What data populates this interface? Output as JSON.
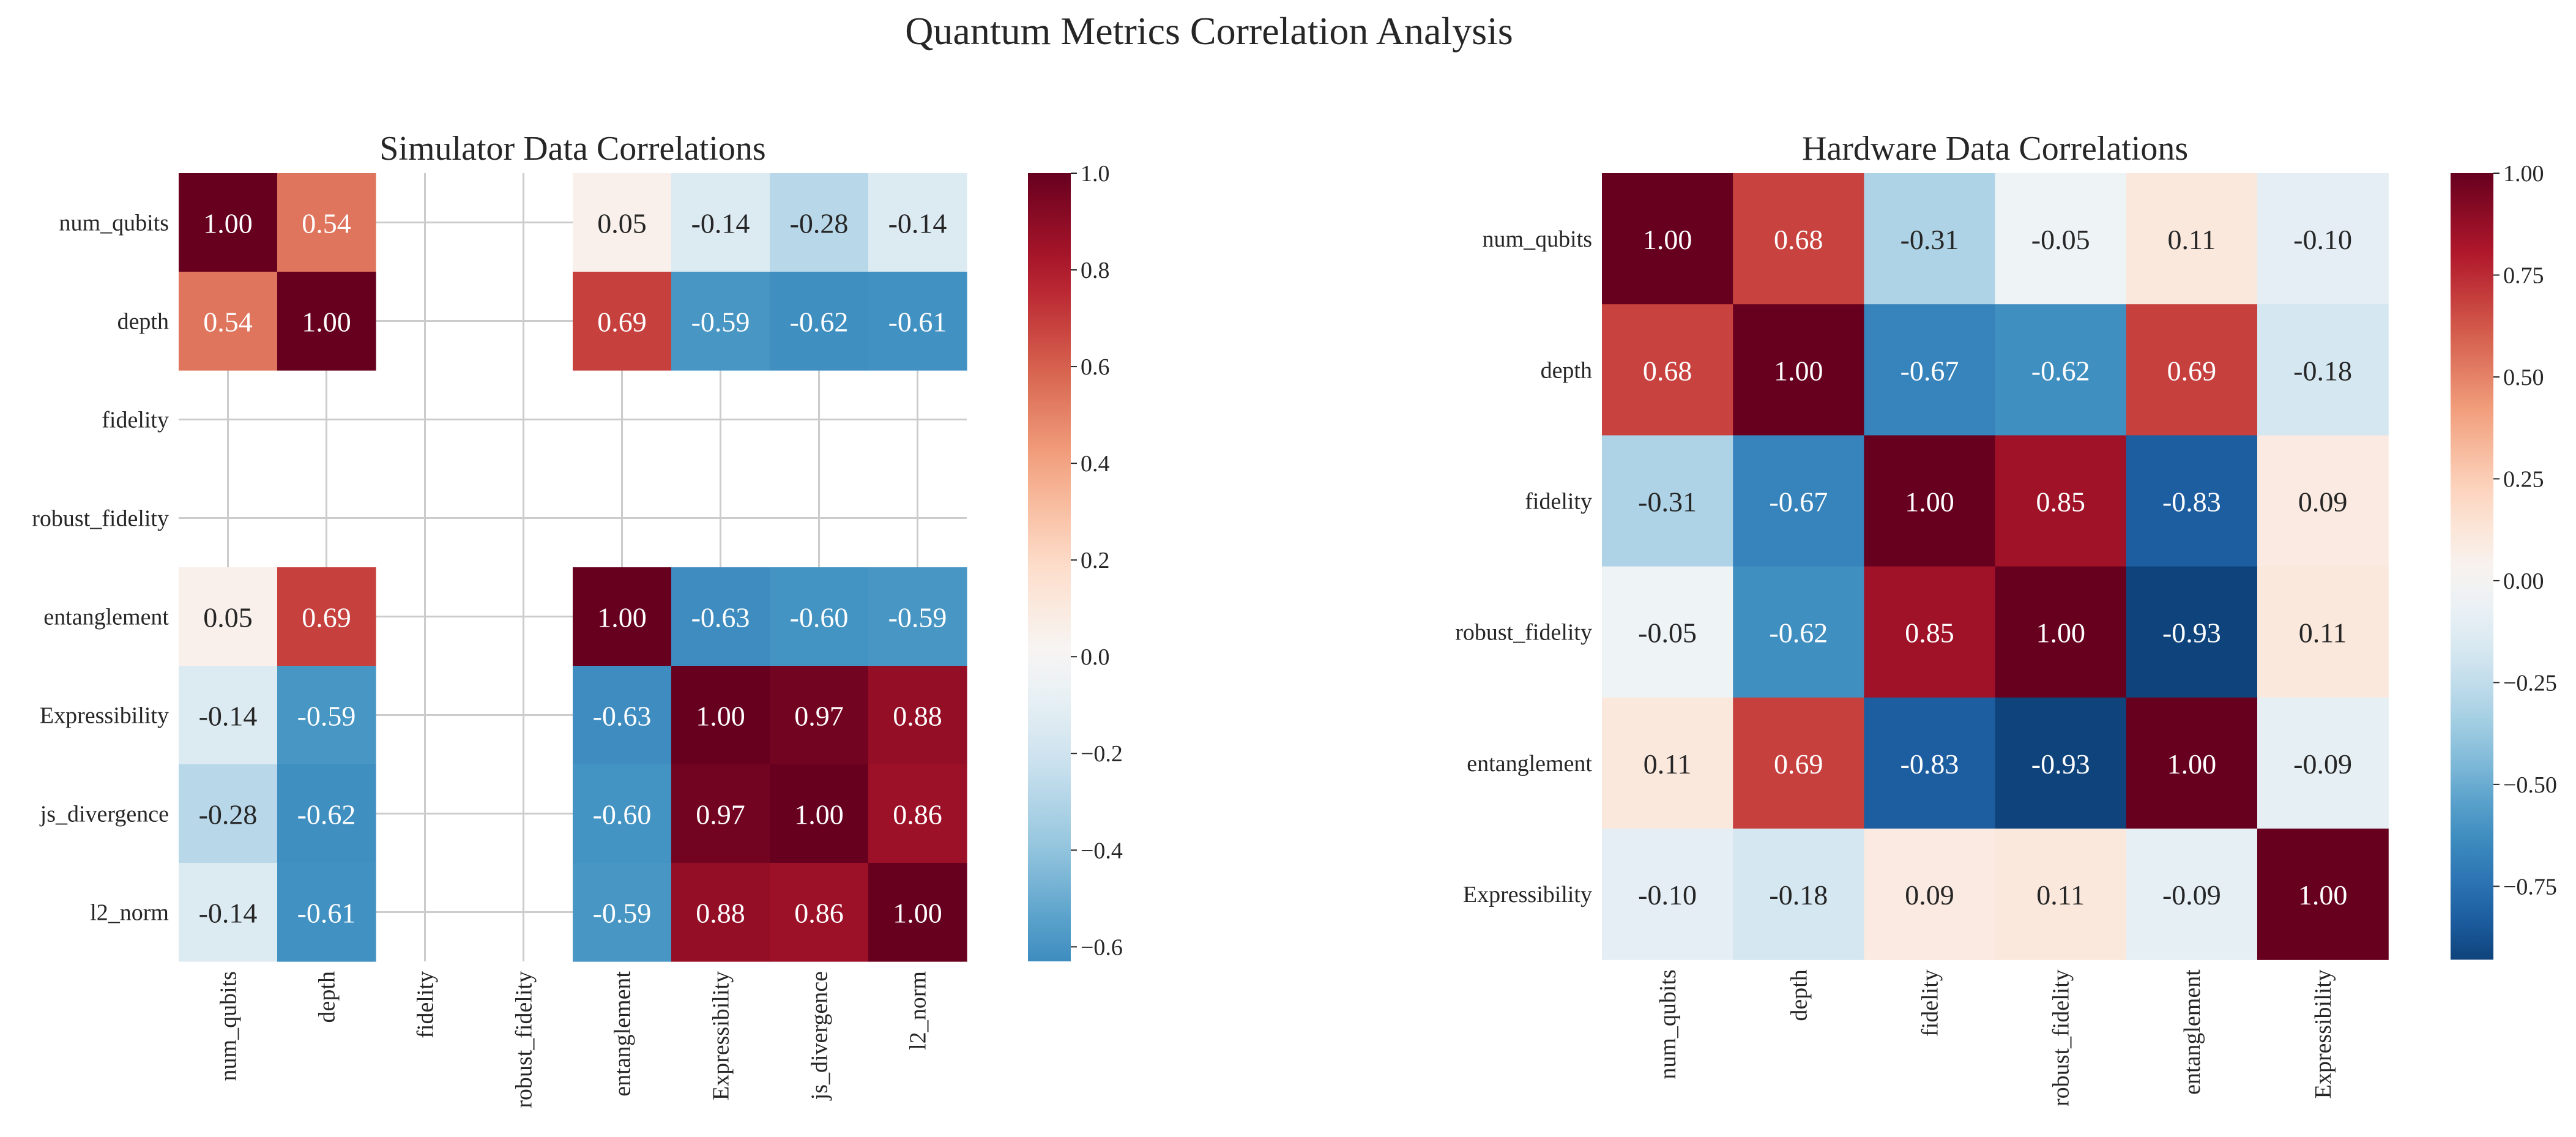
{
  "figure": {
    "suptitle": "Quantum Metrics Correlation Analysis"
  },
  "chart_data": [
    {
      "type": "heatmap",
      "title": "Simulator Data Correlations",
      "labels": [
        "num_qubits",
        "depth",
        "fidelity",
        "robust_fidelity",
        "entanglement",
        "Expressibility",
        "js_divergence",
        "l2_norm"
      ],
      "matrix": [
        [
          1.0,
          0.54,
          null,
          null,
          0.05,
          -0.14,
          -0.28,
          -0.14
        ],
        [
          0.54,
          1.0,
          null,
          null,
          0.69,
          -0.59,
          -0.62,
          -0.61
        ],
        [
          null,
          null,
          null,
          null,
          null,
          null,
          null,
          null
        ],
        [
          null,
          null,
          null,
          null,
          null,
          null,
          null,
          null
        ],
        [
          0.05,
          0.69,
          null,
          null,
          1.0,
          -0.63,
          -0.6,
          -0.59
        ],
        [
          -0.14,
          -0.59,
          null,
          null,
          -0.63,
          1.0,
          0.97,
          0.88
        ],
        [
          -0.28,
          -0.62,
          null,
          null,
          -0.6,
          0.97,
          1.0,
          0.86
        ],
        [
          -0.14,
          -0.61,
          null,
          null,
          -0.59,
          0.88,
          0.86,
          1.0
        ]
      ],
      "colormap": "RdBu_r",
      "vmin": -0.63,
      "vmax": 1.0,
      "colorbar_ticks": [
        "1.0",
        "0.8",
        "0.6",
        "0.4",
        "0.2",
        "0.0",
        "−0.2",
        "−0.4",
        "−0.6"
      ],
      "grid": true
    },
    {
      "type": "heatmap",
      "title": "Hardware Data Correlations",
      "labels": [
        "num_qubits",
        "depth",
        "fidelity",
        "robust_fidelity",
        "entanglement",
        "Expressibility"
      ],
      "matrix": [
        [
          1.0,
          0.68,
          -0.31,
          -0.05,
          0.11,
          -0.1
        ],
        [
          0.68,
          1.0,
          -0.67,
          -0.62,
          0.69,
          -0.18
        ],
        [
          -0.31,
          -0.67,
          1.0,
          0.85,
          -0.83,
          0.09
        ],
        [
          -0.05,
          -0.62,
          0.85,
          1.0,
          -0.93,
          0.11
        ],
        [
          0.11,
          0.69,
          -0.83,
          -0.93,
          1.0,
          -0.09
        ],
        [
          -0.1,
          -0.18,
          0.09,
          0.11,
          -0.09,
          1.0
        ]
      ],
      "colormap": "RdBu_r",
      "vmin": -0.93,
      "vmax": 1.0,
      "colorbar_ticks": [
        "1.00",
        "0.75",
        "0.50",
        "0.25",
        "0.00",
        "−0.25",
        "−0.50",
        "−0.75"
      ],
      "grid": false
    }
  ]
}
